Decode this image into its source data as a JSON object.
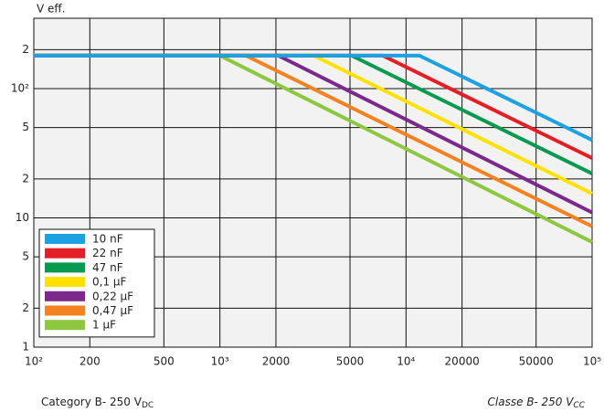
{
  "chart_data": {
    "type": "line",
    "y_label": "V eff.",
    "footnote_left": {
      "text": "Category B- 250 V",
      "sub": "DC"
    },
    "footnote_right": {
      "text": "Classe B- 250 V",
      "sub": "CC"
    },
    "log_x": true,
    "log_y": true,
    "grid": true,
    "legend": "lower left",
    "xlim": [
      100,
      100000
    ],
    "xticks": [
      {
        "value": 100,
        "label": "10²"
      },
      200,
      500,
      {
        "value": 1000,
        "label": "10³"
      },
      2000,
      5000,
      {
        "value": 10000,
        "label": "10⁴"
      },
      20000,
      50000,
      {
        "value": 100000,
        "label": "10⁵"
      }
    ],
    "ylim": [
      1,
      350
    ],
    "yticks": [
      1,
      2,
      5,
      10,
      {
        "value": 20,
        "label": "2"
      },
      {
        "value": 50,
        "label": "5"
      },
      {
        "value": 100,
        "label": "10²"
      },
      {
        "value": 200,
        "label": "2"
      }
    ],
    "series": [
      {
        "name": "10 nF",
        "color": "#1da1e0",
        "x": [
          100,
          11800,
          100000
        ],
        "values": [
          180,
          180,
          40
        ]
      },
      {
        "name": "22 nF",
        "color": "#e31e24",
        "x": [
          100,
          7500,
          100000
        ],
        "values": [
          180,
          180,
          29
        ]
      },
      {
        "name": "47 nF",
        "color": "#0a9a4f",
        "x": [
          100,
          5100,
          100000
        ],
        "values": [
          180,
          180,
          22
        ]
      },
      {
        "name": "0,1 µF",
        "color": "#ffe100",
        "x": [
          100,
          3200,
          100000
        ],
        "values": [
          180,
          180,
          15.4
        ]
      },
      {
        "name": "0,22 µF",
        "color": "#7b2a8c",
        "x": [
          100,
          2060,
          100000
        ],
        "values": [
          180,
          180,
          11
        ]
      },
      {
        "name": "0,47 µF",
        "color": "#f58220",
        "x": [
          100,
          1380,
          100000
        ],
        "values": [
          180,
          180,
          8.6
        ]
      },
      {
        "name": "1 µF",
        "color": "#8dc63f",
        "x": [
          100,
          1000,
          100000
        ],
        "values": [
          180,
          180,
          6.5
        ]
      }
    ]
  }
}
